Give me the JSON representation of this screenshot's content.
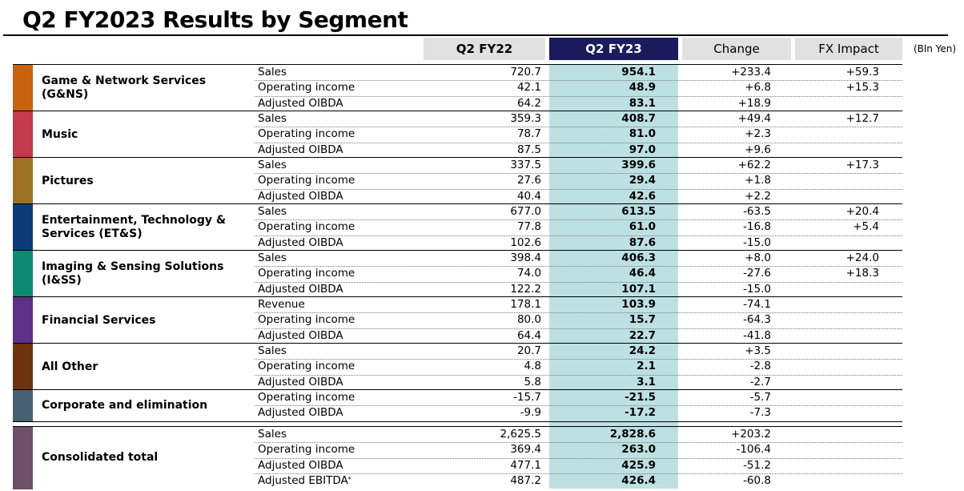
{
  "title": "Q2 FY2023 Results by Segment",
  "unit": "(Bln Yen)",
  "columns": {
    "fy22": "Q2 FY22",
    "fy23": "Q2 FY23",
    "change": "Change",
    "fx": "FX Impact"
  },
  "colors": {
    "header_fy23": "#1b1b5e",
    "header_gray": "#e1e1e1",
    "highlight": "#bde0e3"
  },
  "segments": [
    {
      "name": "Game & Network Services\n(G&NS)",
      "color": "#c8620e",
      "rows": [
        {
          "label": "Sales",
          "fy22": "720.7",
          "fy23": "954.1",
          "change": "+233.4",
          "fx": "+59.3"
        },
        {
          "label": "Operating income",
          "fy22": "42.1",
          "fy23": "48.9",
          "change": "+6.8",
          "fx": "+15.3"
        },
        {
          "label": "Adjusted OIBDA",
          "fy22": "64.2",
          "fy23": "83.1",
          "change": "+18.9",
          "fx": ""
        }
      ]
    },
    {
      "name": "Music",
      "color": "#c23a4b",
      "rows": [
        {
          "label": "Sales",
          "fy22": "359.3",
          "fy23": "408.7",
          "change": "+49.4",
          "fx": "+12.7"
        },
        {
          "label": "Operating income",
          "fy22": "78.7",
          "fy23": "81.0",
          "change": "+2.3",
          "fx": ""
        },
        {
          "label": "Adjusted OIBDA",
          "fy22": "87.5",
          "fy23": "97.0",
          "change": "+9.6",
          "fx": ""
        }
      ]
    },
    {
      "name": "Pictures",
      "color": "#9c7324",
      "rows": [
        {
          "label": "Sales",
          "fy22": "337.5",
          "fy23": "399.6",
          "change": "+62.2",
          "fx": "+17.3"
        },
        {
          "label": "Operating income",
          "fy22": "27.6",
          "fy23": "29.4",
          "change": "+1.8",
          "fx": ""
        },
        {
          "label": "Adjusted OIBDA",
          "fy22": "40.4",
          "fy23": "42.6",
          "change": "+2.2",
          "fx": ""
        }
      ]
    },
    {
      "name": "Entertainment, Technology &\nServices (ET&S)",
      "color": "#0d3b78",
      "rows": [
        {
          "label": "Sales",
          "fy22": "677.0",
          "fy23": "613.5",
          "change": "-63.5",
          "fx": "+20.4"
        },
        {
          "label": "Operating income",
          "fy22": "77.8",
          "fy23": "61.0",
          "change": "-16.8",
          "fx": "+5.4"
        },
        {
          "label": "Adjusted OIBDA",
          "fy22": "102.6",
          "fy23": "87.6",
          "change": "-15.0",
          "fx": ""
        }
      ]
    },
    {
      "name": "Imaging & Sensing Solutions\n(I&SS)",
      "color": "#0f8a72",
      "rows": [
        {
          "label": "Sales",
          "fy22": "398.4",
          "fy23": "406.3",
          "change": "+8.0",
          "fx": "+24.0"
        },
        {
          "label": "Operating income",
          "fy22": "74.0",
          "fy23": "46.4",
          "change": "-27.6",
          "fx": "+18.3"
        },
        {
          "label": "Adjusted OIBDA",
          "fy22": "122.2",
          "fy23": "107.1",
          "change": "-15.0",
          "fx": ""
        }
      ]
    },
    {
      "name": "Financial Services",
      "color": "#5e3187",
      "rows": [
        {
          "label": "Revenue",
          "fy22": "178.1",
          "fy23": "103.9",
          "change": "-74.1",
          "fx": ""
        },
        {
          "label": "Operating income",
          "fy22": "80.0",
          "fy23": "15.7",
          "change": "-64.3",
          "fx": ""
        },
        {
          "label": "Adjusted OIBDA",
          "fy22": "64.4",
          "fy23": "22.7",
          "change": "-41.8",
          "fx": ""
        }
      ]
    },
    {
      "name": "All Other",
      "color": "#6e3410",
      "rows": [
        {
          "label": "Sales",
          "fy22": "20.7",
          "fy23": "24.2",
          "change": "+3.5",
          "fx": ""
        },
        {
          "label": "Operating income",
          "fy22": "4.8",
          "fy23": "2.1",
          "change": "-2.8",
          "fx": ""
        },
        {
          "label": "Adjusted OIBDA",
          "fy22": "5.8",
          "fy23": "3.1",
          "change": "-2.7",
          "fx": ""
        }
      ]
    },
    {
      "name": "Corporate and elimination",
      "color": "#476173",
      "rows": [
        {
          "label": "Operating income",
          "fy22": "-15.7",
          "fy23": "-21.5",
          "change": "-5.7",
          "fx": ""
        },
        {
          "label": "Adjusted OIBDA",
          "fy22": "-9.9",
          "fy23": "-17.2",
          "change": "-7.3",
          "fx": ""
        }
      ]
    },
    {
      "name": "Consolidated total",
      "color": "#6e5068",
      "rows": [
        {
          "label": "Sales",
          "fy22": "2,625.5",
          "fy23": "2,828.6",
          "change": "+203.2",
          "fx": ""
        },
        {
          "label": "Operating income",
          "fy22": "369.4",
          "fy23": "263.0",
          "change": "-106.4",
          "fx": ""
        },
        {
          "label": "Adjusted OIBDA",
          "fy22": "477.1",
          "fy23": "425.9",
          "change": "-51.2",
          "fx": ""
        },
        {
          "label": "Adjusted EBITDA",
          "note": "*",
          "fy22": "487.2",
          "fy23": "426.4",
          "change": "-60.8",
          "fx": ""
        }
      ]
    }
  ]
}
